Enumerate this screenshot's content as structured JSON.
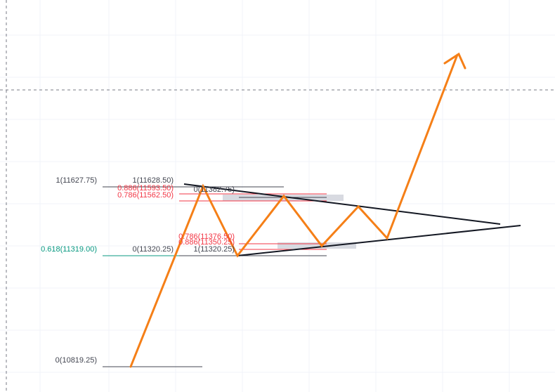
{
  "colors": {
    "background": "#ffffff",
    "grid": "#f0f3fa",
    "projection": "#f57f17",
    "trendline": "#131722",
    "fib_level_dark": "#434651",
    "fib_level_red": "#f23645",
    "fib_level_green": "#089981",
    "zone": "#d1d4dc",
    "crosshair": "#787b86"
  },
  "fib_labels": {
    "top_left": "1(11627.75)",
    "top_right": "1(11628.50)",
    "r0886_upper": "0.886(11593.50)",
    "r0786_upper": "0.786(11562.50)",
    "zero_upper": "0(11382.75)",
    "r0786_lower": "0.786(11376.50)",
    "r0886_lower": "0.886(11350.25)",
    "golden": "0.618(11319.00)",
    "zero_mid": "0(11320.25)",
    "one_lower": "1(11320.25)",
    "bottom": "0(10819.25)"
  },
  "icons": {
    "arrow_head": "arrow-head-icon"
  }
}
